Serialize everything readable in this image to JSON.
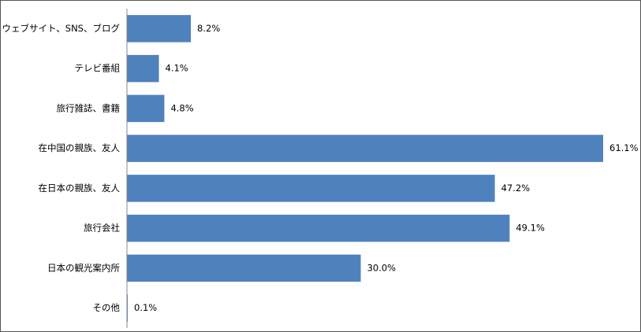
{
  "chart_data": {
    "type": "bar",
    "orientation": "horizontal",
    "categories": [
      "ウェブサイト、SNS、ブログ",
      "テレビ番組",
      "旅行雑誌、書籍",
      "在中国の親族、友人",
      "在日本の親族、友人",
      "旅行会社",
      "日本の観光案内所",
      "その他"
    ],
    "values": [
      8.2,
      4.1,
      4.8,
      61.1,
      47.2,
      49.1,
      30.0,
      0.1
    ],
    "value_labels": [
      "8.2%",
      "4.1%",
      "4.8%",
      "61.1%",
      "47.2%",
      "49.1%",
      "30.0%",
      "0.1%"
    ],
    "color": "#4f81bd"
  }
}
